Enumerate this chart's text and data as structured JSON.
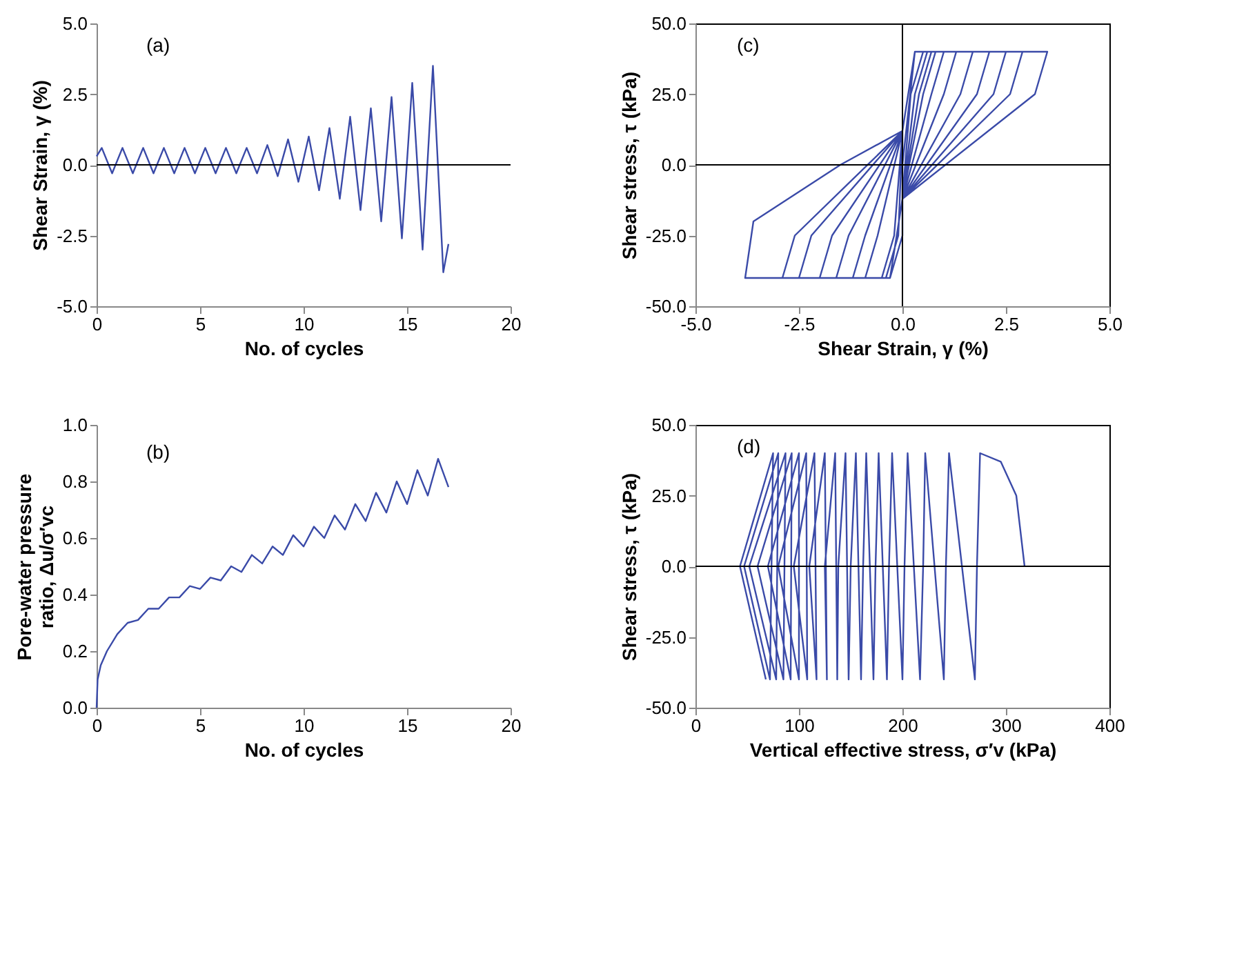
{
  "chart_data": [
    {
      "type": "line",
      "xlabel": "No. of cycles",
      "ylabel": "Shear Strain, γ (%)",
      "annotations": [
        "(a)"
      ],
      "color": "#3a4aa8",
      "grid": false,
      "xlim": [
        0,
        20
      ],
      "xticks": [
        0,
        5,
        10,
        15,
        20
      ],
      "ylim": [
        -5,
        5
      ],
      "yticks": [
        {
          "value": -5,
          "label": "-5.0"
        },
        {
          "value": -2.5,
          "label": "-2.5"
        },
        {
          "value": 0,
          "label": "0.0"
        },
        {
          "value": 2.5,
          "label": "2.5"
        },
        {
          "value": 5,
          "label": "5.0"
        }
      ],
      "ref_lines": [
        {
          "axis": "y",
          "value": 0
        }
      ],
      "x": [
        0,
        0.25,
        0.75,
        1.25,
        1.75,
        2.25,
        2.75,
        3.25,
        3.75,
        4.25,
        4.75,
        5.25,
        5.75,
        6.25,
        6.75,
        7.25,
        7.75,
        8.25,
        8.75,
        9.25,
        9.75,
        10.25,
        10.75,
        11.25,
        11.75,
        12.25,
        12.75,
        13.25,
        13.75,
        14.25,
        14.75,
        15.25,
        15.75,
        16.25,
        16.75,
        17.0
      ],
      "values": [
        0.3,
        0.6,
        -0.3,
        0.6,
        -0.3,
        0.6,
        -0.3,
        0.6,
        -0.3,
        0.6,
        -0.3,
        0.6,
        -0.3,
        0.6,
        -0.3,
        0.6,
        -0.3,
        0.7,
        -0.4,
        0.9,
        -0.6,
        1.0,
        -0.9,
        1.3,
        -1.2,
        1.7,
        -1.6,
        2.0,
        -2.0,
        2.4,
        -2.6,
        2.9,
        -3.0,
        3.5,
        -3.8,
        -2.8
      ]
    },
    {
      "type": "line",
      "xlabel": "Shear Strain, γ (%)",
      "ylabel": "Shear stress, τ (kPa)",
      "annotations": [
        "(c)"
      ],
      "color": "#3a4aa8",
      "grid": false,
      "xlim": [
        -5,
        5
      ],
      "xticks": [
        {
          "value": -5,
          "label": "-5.0"
        },
        {
          "value": -2.5,
          "label": "-2.5"
        },
        {
          "value": 0,
          "label": "0.0"
        },
        {
          "value": 2.5,
          "label": "2.5"
        },
        {
          "value": 5,
          "label": "5.0"
        }
      ],
      "ylim": [
        -50,
        50
      ],
      "yticks": [
        {
          "value": -50,
          "label": "-50.0"
        },
        {
          "value": -25,
          "label": "-25.0"
        },
        {
          "value": 0,
          "label": "0.0"
        },
        {
          "value": 25,
          "label": "25.0"
        },
        {
          "value": 50,
          "label": "50.0"
        }
      ],
      "ref_lines": [
        {
          "axis": "x",
          "value": 0
        },
        {
          "axis": "y",
          "value": 0
        }
      ],
      "x": [
        0,
        0.3,
        0.5,
        0.2,
        0,
        -0.3,
        0.0,
        0,
        0.3,
        0.6,
        0.3,
        0,
        -0.3,
        0.0,
        0,
        0.3,
        0.7,
        0.4,
        0,
        -0.3,
        -0.4,
        -0.1,
        0,
        0.3,
        0.8,
        0.5,
        0,
        -0.3,
        -0.5,
        -0.2,
        0,
        0.3,
        1.0,
        0.7,
        0,
        -0.3,
        -0.9,
        -0.6,
        0,
        0.3,
        1.3,
        1.0,
        0,
        -0.3,
        -1.2,
        -0.9,
        0,
        0.3,
        1.7,
        1.4,
        0,
        -0.3,
        -1.6,
        -1.3,
        0,
        0.3,
        2.1,
        1.8,
        0,
        -0.3,
        -2.0,
        -1.7,
        0,
        0.3,
        2.5,
        2.2,
        0,
        -0.3,
        -2.5,
        -2.2,
        0,
        0.3,
        2.9,
        2.6,
        0,
        -0.3,
        -2.9,
        -2.6,
        0,
        0.3,
        3.5,
        3.2,
        0,
        -0.3,
        -3.8,
        -3.6,
        -1.5,
        0,
        0.3
      ],
      "values": [
        0,
        40,
        40,
        25,
        -12,
        -40,
        -25,
        12,
        40,
        40,
        25,
        -12,
        -40,
        -25,
        12,
        40,
        40,
        25,
        -12,
        -40,
        -40,
        -25,
        12,
        40,
        40,
        25,
        -12,
        -40,
        -40,
        -25,
        12,
        40,
        40,
        25,
        -12,
        -40,
        -40,
        -25,
        12,
        40,
        40,
        25,
        -12,
        -40,
        -40,
        -25,
        12,
        40,
        40,
        25,
        -12,
        -40,
        -40,
        -25,
        12,
        40,
        40,
        25,
        -12,
        -40,
        -40,
        -25,
        12,
        40,
        40,
        25,
        -12,
        -40,
        -40,
        -25,
        12,
        40,
        40,
        25,
        -12,
        -40,
        -40,
        -25,
        12,
        40,
        40,
        25,
        -12,
        -40,
        -40,
        -20,
        0,
        12,
        40
      ]
    },
    {
      "type": "line",
      "xlabel": "No. of cycles",
      "ylabel": "Pore-water pressure ratio, Δu/σ′vc",
      "annotations": [
        "(b)"
      ],
      "color": "#3a4aa8",
      "grid": false,
      "xlim": [
        0,
        20
      ],
      "xticks": [
        0,
        5,
        10,
        15,
        20
      ],
      "ylim": [
        0,
        1
      ],
      "yticks": [
        {
          "value": 0,
          "label": "0.0"
        },
        {
          "value": 0.2,
          "label": "0.2"
        },
        {
          "value": 0.4,
          "label": "0.4"
        },
        {
          "value": 0.6,
          "label": "0.6"
        },
        {
          "value": 0.8,
          "label": "0.8"
        },
        {
          "value": 1,
          "label": "1.0"
        }
      ],
      "x": [
        0,
        0.05,
        0.2,
        0.5,
        1,
        1.5,
        2,
        2.5,
        3,
        3.5,
        4,
        4.5,
        5,
        5.5,
        6,
        6.5,
        7,
        7.5,
        8,
        8.5,
        9,
        9.5,
        10,
        10.5,
        11,
        11.5,
        12,
        12.5,
        13,
        13.5,
        14,
        14.5,
        15,
        15.5,
        16,
        16.5,
        17
      ],
      "values": [
        0.0,
        0.1,
        0.15,
        0.2,
        0.26,
        0.3,
        0.31,
        0.35,
        0.35,
        0.39,
        0.39,
        0.43,
        0.42,
        0.46,
        0.45,
        0.5,
        0.48,
        0.54,
        0.51,
        0.57,
        0.54,
        0.61,
        0.57,
        0.64,
        0.6,
        0.68,
        0.63,
        0.72,
        0.66,
        0.76,
        0.69,
        0.8,
        0.72,
        0.84,
        0.75,
        0.88,
        0.78
      ]
    },
    {
      "type": "line",
      "xlabel": "Vertical effective stress, σ′v (kPa)",
      "ylabel": "Shear stress, τ (kPa)",
      "annotations": [
        "(d)"
      ],
      "color": "#3a4aa8",
      "grid": false,
      "xlim": [
        0,
        400
      ],
      "xticks": [
        0,
        100,
        200,
        300,
        400
      ],
      "ylim": [
        -50,
        50
      ],
      "yticks": [
        {
          "value": -50,
          "label": "-50.0"
        },
        {
          "value": -25,
          "label": "-25.0"
        },
        {
          "value": 0,
          "label": "0.0"
        },
        {
          "value": 25,
          "label": "25.0"
        },
        {
          "value": 50,
          "label": "50.0"
        }
      ],
      "ref_lines": [
        {
          "axis": "y",
          "value": 0
        }
      ],
      "x": [
        318,
        310,
        295,
        275,
        272,
        270,
        245,
        242,
        240,
        222,
        220,
        217,
        205,
        202,
        200,
        190,
        187,
        185,
        177,
        174,
        172,
        165,
        162,
        160,
        155,
        150,
        148,
        145,
        138,
        137,
        135,
        125,
        127,
        125,
        110,
        117,
        115,
        95,
        108,
        107,
        80,
        100,
        100,
        70,
        92,
        93,
        60,
        85,
        87,
        52,
        78,
        80,
        47,
        72,
        75,
        43,
        68
      ],
      "values": [
        0,
        25,
        37,
        40,
        0,
        -40,
        40,
        0,
        -40,
        40,
        0,
        -40,
        40,
        0,
        -40,
        40,
        0,
        -40,
        40,
        0,
        -40,
        40,
        0,
        -40,
        40,
        0,
        -40,
        40,
        0,
        -40,
        40,
        0,
        -40,
        40,
        0,
        -40,
        40,
        0,
        -40,
        40,
        0,
        -40,
        40,
        0,
        -40,
        40,
        0,
        -40,
        40,
        0,
        -40,
        40,
        0,
        -40,
        40,
        0,
        -40
      ]
    }
  ]
}
